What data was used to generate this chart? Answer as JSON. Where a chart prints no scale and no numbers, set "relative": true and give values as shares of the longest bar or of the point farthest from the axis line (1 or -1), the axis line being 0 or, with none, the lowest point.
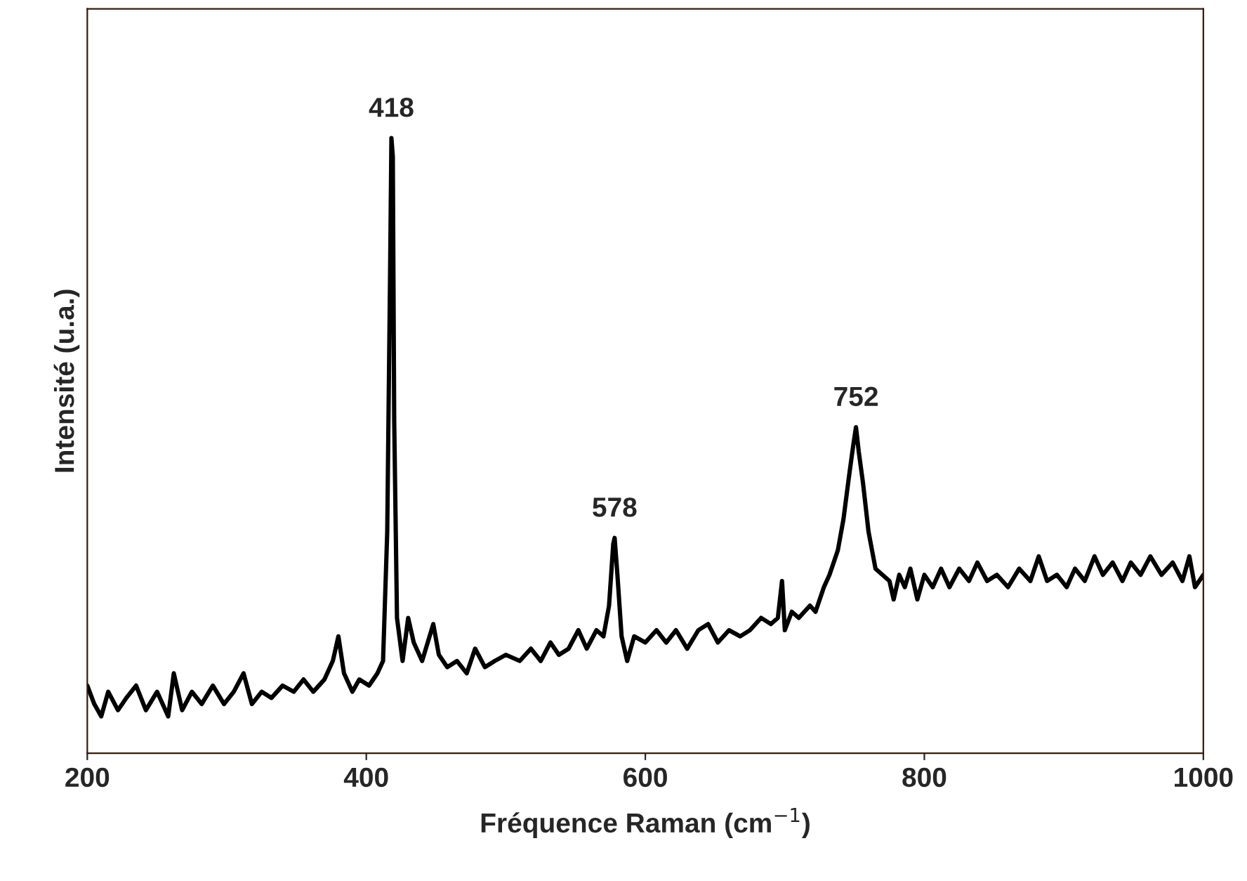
{
  "chart_data": {
    "type": "line",
    "relative": true,
    "xlabel": "Fréquence Raman (cm$^{−1}$)",
    "ylabel": "Intensité (u.a.)",
    "xlim": [
      200,
      1000
    ],
    "xticks": [
      200,
      400,
      600,
      800,
      1000
    ],
    "grid": false,
    "annotations": [
      {
        "text": "418",
        "x": 418,
        "y": 1.0
      },
      {
        "text": "578",
        "x": 578,
        "y": 0.35
      },
      {
        "text": "752",
        "x": 751,
        "y": 0.53
      }
    ],
    "series": [
      {
        "color": "#000000",
        "x": [
          200,
          205,
          210,
          215,
          222,
          228,
          235,
          242,
          250,
          258,
          262,
          268,
          275,
          282,
          290,
          298,
          305,
          312,
          318,
          325,
          332,
          340,
          348,
          355,
          362,
          370,
          376,
          380,
          384,
          390,
          395,
          402,
          408,
          412,
          415,
          417,
          418,
          419,
          420,
          422,
          426,
          430,
          434,
          440,
          448,
          452,
          458,
          465,
          472,
          478,
          485,
          492,
          500,
          510,
          518,
          525,
          532,
          538,
          545,
          552,
          558,
          565,
          570,
          574,
          577,
          578,
          580,
          583,
          587,
          592,
          600,
          608,
          615,
          622,
          630,
          638,
          645,
          652,
          660,
          668,
          675,
          683,
          690,
          695,
          698,
          700,
          705,
          710,
          718,
          722,
          728,
          732,
          738,
          742,
          746,
          749,
          751,
          753,
          756,
          760,
          765,
          770,
          775,
          778,
          782,
          786,
          790,
          795,
          800,
          806,
          812,
          818,
          825,
          832,
          838,
          845,
          852,
          860,
          868,
          876,
          882,
          888,
          895,
          902,
          908,
          915,
          922,
          928,
          935,
          942,
          948,
          955,
          962,
          970,
          978,
          985,
          990,
          994,
          1000
        ],
        "values": [
          0.11,
          0.08,
          0.06,
          0.1,
          0.07,
          0.09,
          0.11,
          0.07,
          0.1,
          0.06,
          0.13,
          0.07,
          0.1,
          0.08,
          0.11,
          0.08,
          0.1,
          0.13,
          0.08,
          0.1,
          0.09,
          0.11,
          0.1,
          0.12,
          0.1,
          0.12,
          0.15,
          0.19,
          0.13,
          0.1,
          0.12,
          0.11,
          0.13,
          0.15,
          0.36,
          0.77,
          1.0,
          0.97,
          0.54,
          0.22,
          0.15,
          0.22,
          0.18,
          0.15,
          0.21,
          0.16,
          0.14,
          0.15,
          0.13,
          0.17,
          0.14,
          0.15,
          0.16,
          0.15,
          0.17,
          0.15,
          0.18,
          0.16,
          0.17,
          0.2,
          0.17,
          0.2,
          0.19,
          0.24,
          0.34,
          0.35,
          0.29,
          0.19,
          0.15,
          0.19,
          0.18,
          0.2,
          0.18,
          0.2,
          0.17,
          0.2,
          0.21,
          0.18,
          0.2,
          0.19,
          0.2,
          0.22,
          0.21,
          0.22,
          0.28,
          0.2,
          0.23,
          0.22,
          0.24,
          0.23,
          0.27,
          0.29,
          0.33,
          0.38,
          0.45,
          0.5,
          0.53,
          0.49,
          0.44,
          0.36,
          0.3,
          0.29,
          0.28,
          0.25,
          0.29,
          0.27,
          0.3,
          0.25,
          0.29,
          0.27,
          0.3,
          0.27,
          0.3,
          0.28,
          0.31,
          0.28,
          0.29,
          0.27,
          0.3,
          0.28,
          0.32,
          0.28,
          0.29,
          0.27,
          0.3,
          0.28,
          0.32,
          0.29,
          0.31,
          0.28,
          0.31,
          0.29,
          0.32,
          0.29,
          0.31,
          0.28,
          0.32,
          0.27,
          0.29
        ]
      }
    ]
  }
}
